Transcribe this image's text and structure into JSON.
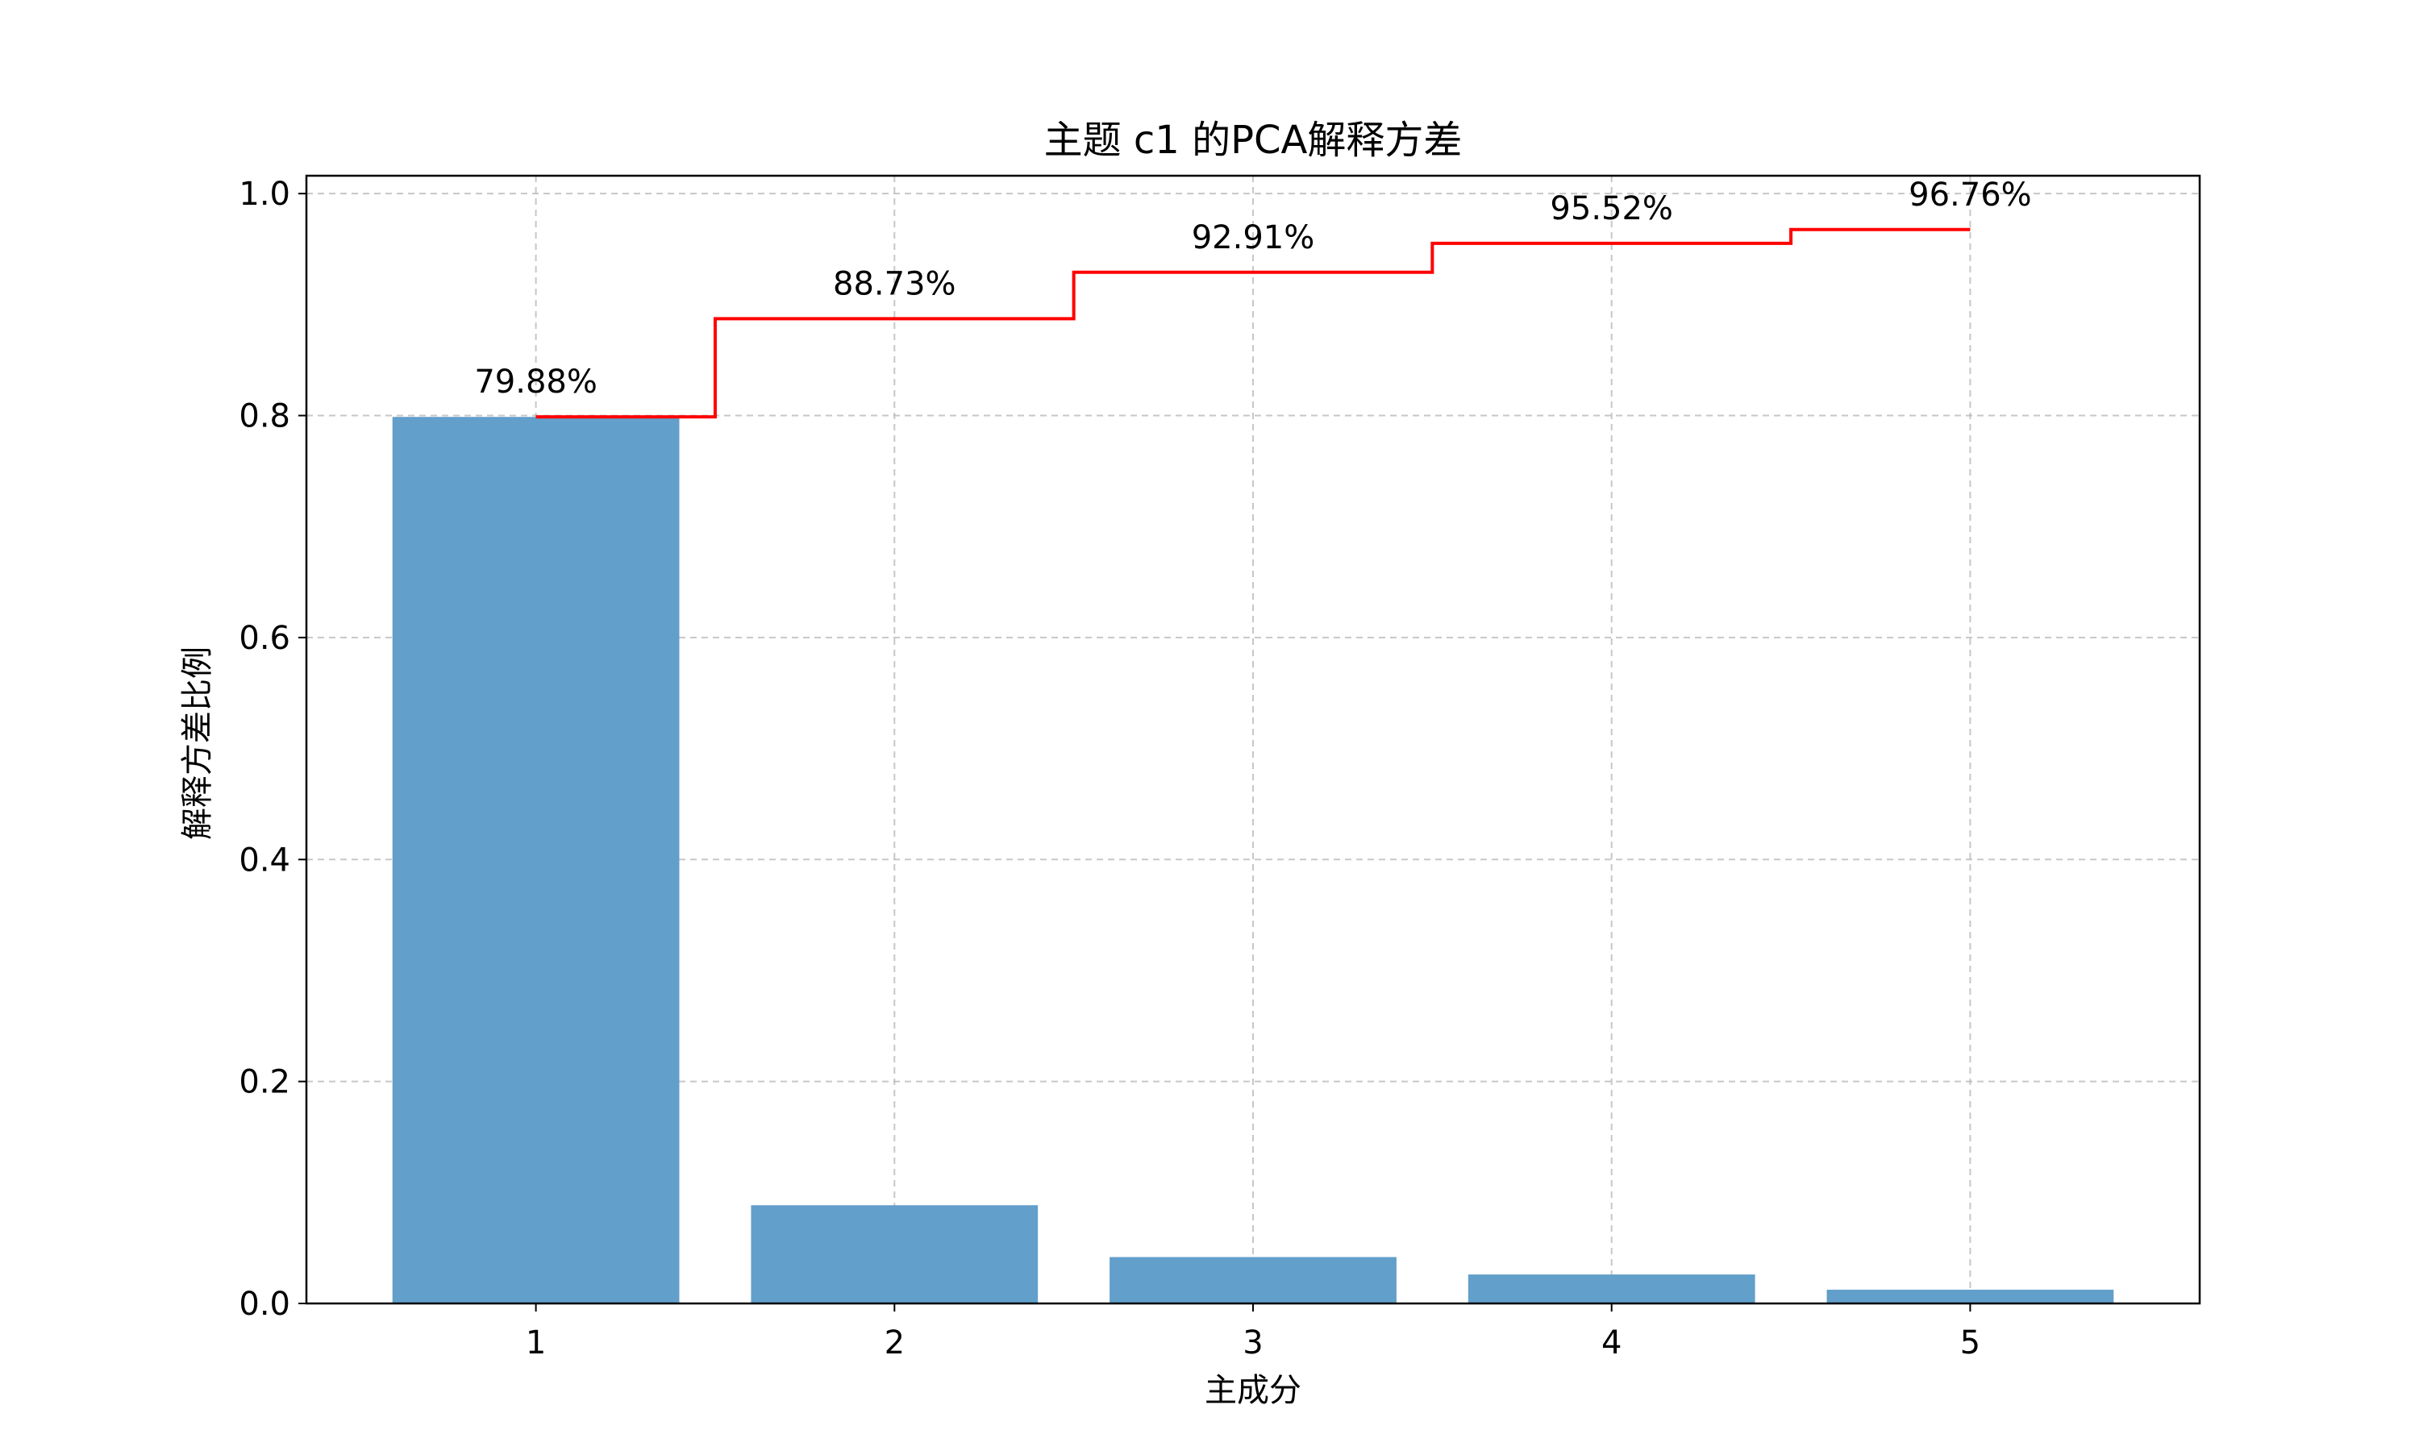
{
  "chart_data": {
    "type": "bar",
    "title": "主题 c1 的PCA解释方差",
    "xlabel": "主成分",
    "ylabel": "解释方差比例",
    "categories": [
      "1",
      "2",
      "3",
      "4",
      "5"
    ],
    "x": [
      1,
      2,
      3,
      4,
      5
    ],
    "series": [
      {
        "type": "bar",
        "values": [
          0.7988,
          0.0885,
          0.0418,
          0.0261,
          0.0124
        ],
        "color": "#629fca"
      },
      {
        "type": "line",
        "step": "mid",
        "values": [
          0.7988,
          0.8873,
          0.9291,
          0.9552,
          0.9676
        ],
        "color": "#ff0000"
      }
    ],
    "data_labels": [
      "79.88%",
      "88.73%",
      "92.91%",
      "95.52%",
      "96.76%"
    ],
    "xlim": [
      0.36,
      5.64
    ],
    "ylim": [
      0.0,
      1.0161
    ],
    "yticks": [
      0.0,
      0.2,
      0.4,
      0.6,
      0.8,
      1.0
    ],
    "ytick_labels": [
      "0.0",
      "0.2",
      "0.4",
      "0.6",
      "0.8",
      "1.0"
    ],
    "xtick_labels": [
      "1",
      "2",
      "3",
      "4",
      "5"
    ],
    "grid": true,
    "legend": "none"
  }
}
